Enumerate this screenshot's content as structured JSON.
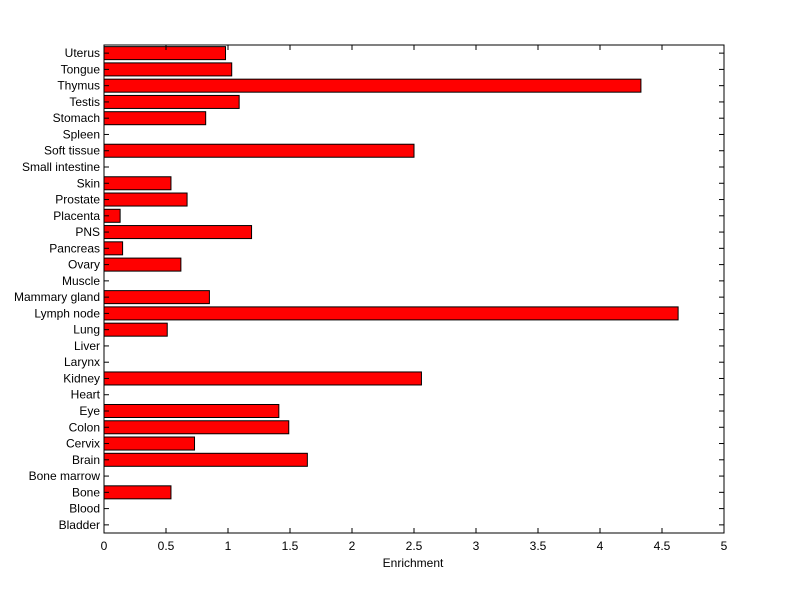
{
  "chart_data": {
    "type": "bar",
    "orientation": "horizontal",
    "title": "",
    "xlabel": "Enrichment",
    "ylabel": "",
    "xlim": [
      0,
      5
    ],
    "x_ticks": [
      "0",
      "0.5",
      "1",
      "1.5",
      "2",
      "2.5",
      "3",
      "3.5",
      "4",
      "4.5",
      "5"
    ],
    "grid": false,
    "bar_color": "#ff0000",
    "categories": [
      "Bladder",
      "Blood",
      "Bone",
      "Bone marrow",
      "Brain",
      "Cervix",
      "Colon",
      "Eye",
      "Heart",
      "Kidney",
      "Larynx",
      "Liver",
      "Lung",
      "Lymph node",
      "Mammary gland",
      "Muscle",
      "Ovary",
      "Pancreas",
      "PNS",
      "Placenta",
      "Prostate",
      "Skin",
      "Small intestine",
      "Soft tissue",
      "Spleen",
      "Stomach",
      "Testis",
      "Thymus",
      "Tongue",
      "Uterus"
    ],
    "values": [
      0,
      0,
      0.54,
      0,
      1.64,
      0.73,
      1.49,
      1.41,
      0,
      2.56,
      0,
      0,
      0.51,
      4.63,
      0.85,
      0,
      0.62,
      0.15,
      1.19,
      0.13,
      0.67,
      0.54,
      0,
      2.5,
      0,
      0.82,
      1.09,
      4.33,
      1.03,
      0.98
    ]
  }
}
